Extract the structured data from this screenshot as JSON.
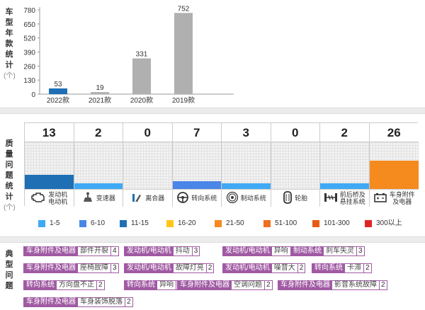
{
  "sections": {
    "model_year": {
      "label_chars": [
        "车",
        "型",
        "年",
        "款",
        "统",
        "计"
      ],
      "unit": "(个)"
    },
    "quality": {
      "label_chars": [
        "质",
        "量",
        "问",
        "题",
        "统",
        "计"
      ],
      "unit": "(个)"
    },
    "typical": {
      "label_chars": [
        "典",
        "型",
        "问",
        "题"
      ]
    }
  },
  "chart_data": [
    {
      "type": "bar",
      "categories": [
        "2022款",
        "2021款",
        "2020款",
        "2019款"
      ],
      "values": [
        53,
        19,
        331,
        752
      ],
      "colors": [
        "#1f6fb5",
        "#b0b0b0",
        "#b0b0b0",
        "#b0b0b0"
      ],
      "yticks": [
        0,
        130,
        260,
        390,
        520,
        650,
        780
      ],
      "ylim": [
        0,
        780
      ],
      "grid": false
    },
    {
      "type": "bar",
      "categories": [
        "发动机/电动机",
        "变速器",
        "离合器",
        "转向系统",
        "制动系统",
        "轮胎",
        "前后桥及悬挂系统",
        "车身附件及电器"
      ],
      "values": [
        13,
        2,
        0,
        7,
        3,
        0,
        2,
        26
      ],
      "display_labels": [
        [
          "发动机",
          "电动机"
        ],
        [
          "变速器"
        ],
        [
          "离合器"
        ],
        [
          "转向系统"
        ],
        [
          "制动系统"
        ],
        [
          "轮胎"
        ],
        [
          "前后桥及",
          "悬挂系统"
        ],
        [
          "车身附件",
          "及电器"
        ]
      ],
      "icons": [
        "engine-icon",
        "gearbox-icon",
        "clutch-icon",
        "steering-wheel-icon",
        "brake-disc-icon",
        "tire-icon",
        "suspension-icon",
        "car-battery-icon"
      ],
      "bar_colors": [
        "#1f6fb5",
        "#3fa9f5",
        "#3fa9f5",
        "#4a86e8",
        "#3fa9f5",
        "#3fa9f5",
        "#3fa9f5",
        "#f58a1f"
      ],
      "legend": [
        {
          "label": "1-5",
          "color": "#3fa9f5"
        },
        {
          "label": "6-10",
          "color": "#4a86e8"
        },
        {
          "label": "11-15",
          "color": "#1f6fb5"
        },
        {
          "label": "16-20",
          "color": "#ffc61a"
        },
        {
          "label": "21-50",
          "color": "#f58a1f"
        },
        {
          "label": "51-100",
          "color": "#f07020"
        },
        {
          "label": "101-300",
          "color": "#e85a14"
        },
        {
          "label": "300以上",
          "color": "#e02424"
        }
      ]
    }
  ],
  "typical_issues": [
    [
      {
        "group": "车身附件及电器",
        "problem": "部件开裂",
        "count": "4"
      },
      {
        "group": "发动机/电动机",
        "problem": "抖动",
        "count": "3"
      },
      {
        "group": "发动机/电动机",
        "problem": "异响",
        "count": "3"
      },
      {
        "group": "制动系统",
        "problem": "刹车失灵",
        "count": "3"
      }
    ],
    [
      {
        "group": "车身附件及电器",
        "problem": "座椅故障",
        "count": "3"
      },
      {
        "group": "发动机/电动机",
        "problem": "故障灯亮",
        "count": "2"
      },
      {
        "group": "发动机/电动机",
        "problem": "噪音大",
        "count": "2"
      },
      {
        "group": "转向系统",
        "problem": "卡滞",
        "count": "2"
      }
    ],
    [
      {
        "group": "转向系统",
        "problem": "方向盘不正",
        "count": "2"
      },
      {
        "group": "转向系统",
        "problem": "异响",
        "count": "2"
      },
      {
        "group": "车身附件及电器",
        "problem": "空调问题",
        "count": "2"
      },
      {
        "group": "车身附件及电器",
        "problem": "影音系统故障",
        "count": "2"
      }
    ],
    [
      {
        "group": "车身附件及电器",
        "problem": "车身装饰脱落",
        "count": "2"
      }
    ]
  ]
}
